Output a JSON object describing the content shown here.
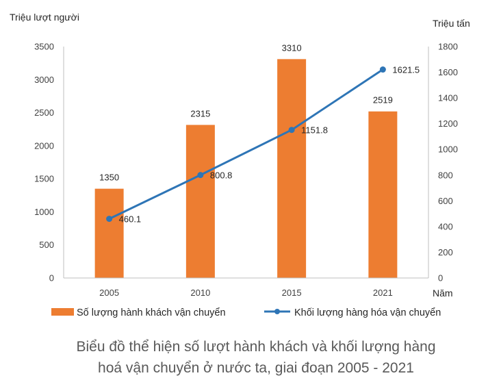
{
  "chart_data": {
    "type": "bar+line",
    "categories": [
      "2005",
      "2010",
      "2015",
      "2021"
    ],
    "series": [
      {
        "name": "Số lượng hành khách vận chuyển",
        "type": "bar",
        "axis": "left",
        "values": [
          1350,
          2315,
          3310,
          2519
        ],
        "labels": [
          "1350",
          "2315",
          "3310",
          "2519"
        ],
        "color": "#ED7D31"
      },
      {
        "name": "Khối lượng hàng hóa vận chuyển",
        "type": "line",
        "axis": "right",
        "values": [
          460.1,
          800.8,
          1151.8,
          1621.5
        ],
        "labels": [
          "460.1",
          "800.8",
          "1151.8",
          "1621.5"
        ],
        "color": "#2E75B6"
      }
    ],
    "y_left": {
      "label": "Triệu lượt người",
      "ylim": [
        0,
        3500
      ],
      "ticks": [
        "0",
        "500",
        "1000",
        "1500",
        "2000",
        "2500",
        "3000",
        "3500"
      ]
    },
    "y_right": {
      "label": "Triệu tấn",
      "ylim": [
        0,
        1800
      ],
      "ticks": [
        "0",
        "200",
        "400",
        "600",
        "800",
        "1000",
        "1200",
        "1400",
        "1600",
        "1800"
      ]
    },
    "xlabel": "Năm",
    "legend_position": "bottom",
    "grid": false,
    "caption_lines": [
      "Biểu đồ thể hiện số lượt hành khách và khối lượng hàng",
      "hoá vận chuyển ở nước ta, giai đoạn 2005 - 2021"
    ]
  }
}
